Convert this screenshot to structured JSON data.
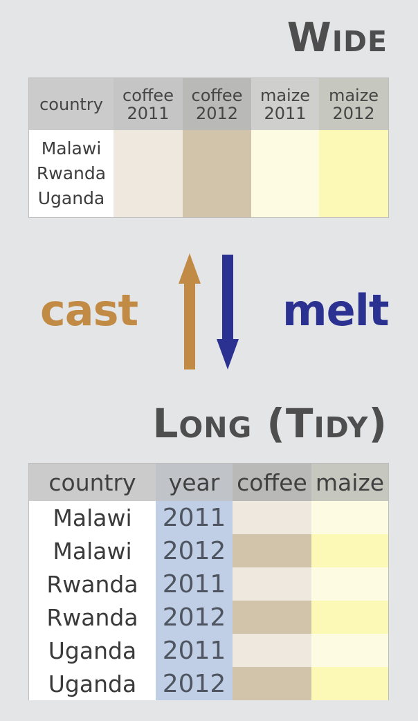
{
  "wide": {
    "title": "Wide",
    "headers": {
      "country": "country",
      "coffee_2011": [
        "coffee",
        "2011"
      ],
      "coffee_2012": [
        "coffee",
        "2012"
      ],
      "maize_2011": [
        "maize",
        "2011"
      ],
      "maize_2012": [
        "maize",
        "2012"
      ]
    },
    "countries": [
      "Malawi",
      "Rwanda",
      "Uganda"
    ]
  },
  "operations": {
    "cast": "cast",
    "melt": "melt"
  },
  "long": {
    "title": "Long (Tidy)",
    "headers": [
      "country",
      "year",
      "coffee",
      "maize"
    ],
    "rows": [
      {
        "country": "Malawi",
        "year": "2011"
      },
      {
        "country": "Malawi",
        "year": "2012"
      },
      {
        "country": "Rwanda",
        "year": "2011"
      },
      {
        "country": "Rwanda",
        "year": "2012"
      },
      {
        "country": "Uganda",
        "year": "2011"
      },
      {
        "country": "Uganda",
        "year": "2012"
      }
    ]
  },
  "colors": {
    "cast": "#c18b45",
    "melt": "#2b3190",
    "coffee_2011": "#efe8df",
    "coffee_2012": "#d1c4aa",
    "maize_2011": "#fdfce2",
    "maize_2012": "#fcf8b6",
    "year_column": "#c0cfe5"
  }
}
